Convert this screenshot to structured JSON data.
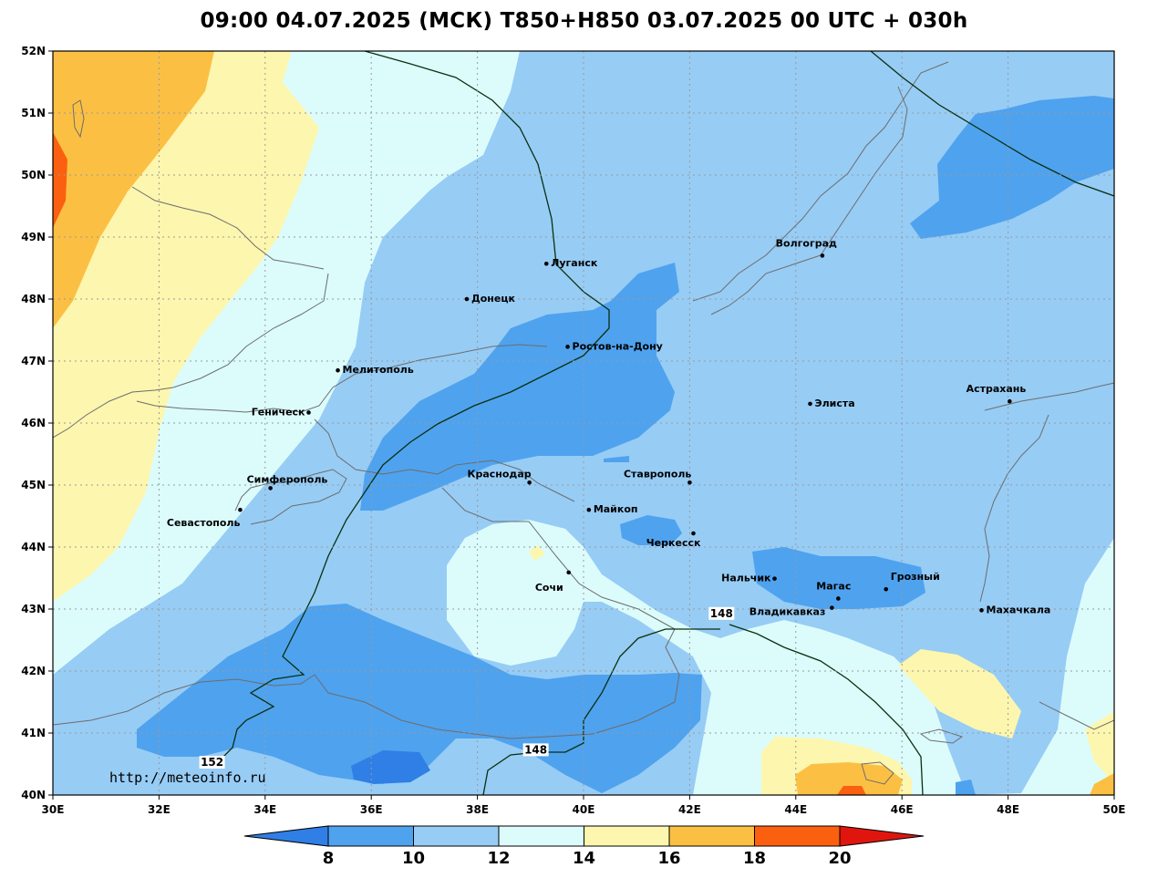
{
  "header": {
    "title": "09:00 04.07.2025 (МСК) T850+H850 03.07.2025 00 UTC + 030h"
  },
  "map": {
    "lon_range": [
      30,
      50
    ],
    "lat_range": [
      40,
      52
    ],
    "lon_ticks": [
      "30E",
      "32E",
      "34E",
      "36E",
      "38E",
      "40E",
      "42E",
      "44E",
      "46E",
      "48E",
      "50E"
    ],
    "lat_ticks": [
      "52N",
      "51N",
      "50N",
      "49N",
      "48N",
      "47N",
      "46N",
      "45N",
      "44N",
      "43N",
      "42N",
      "41N",
      "40N"
    ],
    "grid": true,
    "url": "http://meteoinfo.ru",
    "cities": [
      {
        "name": "Луганск",
        "lon": 39.3,
        "lat": 48.57
      },
      {
        "name": "Донецк",
        "lon": 37.8,
        "lat": 48.0
      },
      {
        "name": "Ростов-на-Дону",
        "lon": 39.7,
        "lat": 47.23
      },
      {
        "name": "Мелитополь",
        "lon": 35.37,
        "lat": 46.85
      },
      {
        "name": "Геническ",
        "lon": 34.82,
        "lat": 46.17
      },
      {
        "name": "Симферополь",
        "lon": 34.1,
        "lat": 44.95
      },
      {
        "name": "Севастополь",
        "lon": 33.53,
        "lat": 44.6
      },
      {
        "name": "Краснодар",
        "lon": 38.98,
        "lat": 45.04
      },
      {
        "name": "Майкоп",
        "lon": 40.1,
        "lat": 44.6
      },
      {
        "name": "Ставрополь",
        "lon": 42.0,
        "lat": 45.04
      },
      {
        "name": "Черкесск",
        "lon": 42.07,
        "lat": 44.22
      },
      {
        "name": "Сочи",
        "lon": 39.72,
        "lat": 43.59
      },
      {
        "name": "Нальчик",
        "lon": 43.6,
        "lat": 43.49
      },
      {
        "name": "Магас",
        "lon": 44.8,
        "lat": 43.17
      },
      {
        "name": "Владикавказ",
        "lon": 44.68,
        "lat": 43.02
      },
      {
        "name": "Грозный",
        "lon": 45.7,
        "lat": 43.32
      },
      {
        "name": "Волгоград",
        "lon": 44.5,
        "lat": 48.7
      },
      {
        "name": "Элиста",
        "lon": 44.27,
        "lat": 46.31
      },
      {
        "name": "Астрахань",
        "lon": 48.03,
        "lat": 46.35
      },
      {
        "name": "Махачкала",
        "lon": 47.5,
        "lat": 42.98
      }
    ],
    "isolines": [
      {
        "value": "148",
        "label_lon": 42.6,
        "label_lat": 42.9
      },
      {
        "value": "148",
        "label_lon": 39.1,
        "label_lat": 40.7
      },
      {
        "value": "152",
        "label_lon": 33.0,
        "label_lat": 40.5
      }
    ]
  },
  "colorbar": {
    "labels": [
      "8",
      "10",
      "12",
      "14",
      "16",
      "18",
      "20"
    ],
    "colors": [
      "#2f7fe6",
      "#4fa2ee",
      "#97ccf5",
      "#dcfcfc",
      "#fdf6ae",
      "#fbc043",
      "#fa6010",
      "#e0160e"
    ]
  }
}
